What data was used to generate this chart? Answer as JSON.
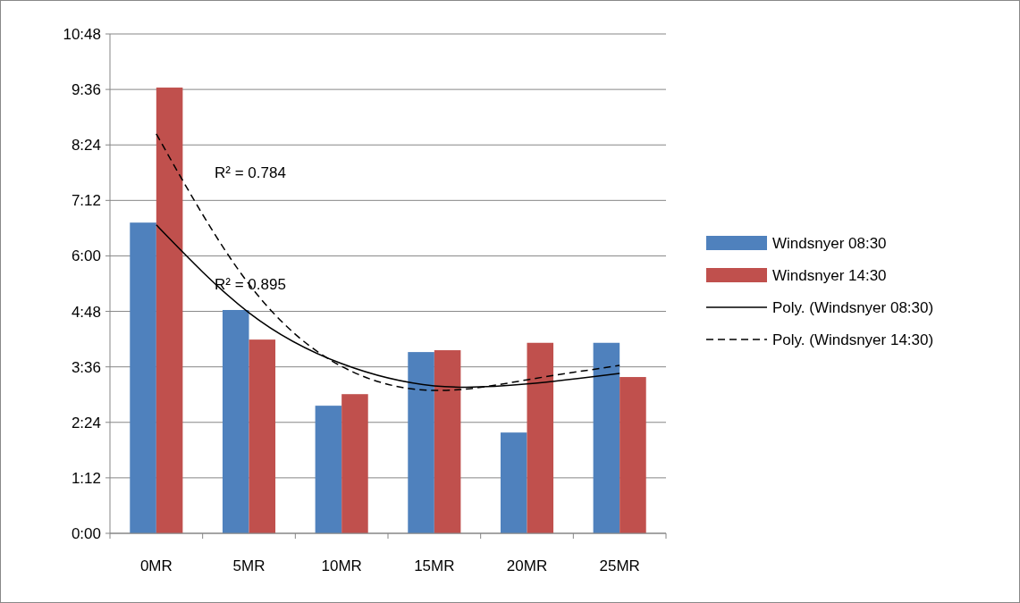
{
  "chart_data": {
    "type": "bar",
    "categories": [
      "0MR",
      "5MR",
      "10MR",
      "15MR",
      "20MR",
      "25MR"
    ],
    "series": [
      {
        "name": "Windsnyer 08:30",
        "color": "#4f81bd",
        "values": [
          6.72,
          4.83,
          2.76,
          3.92,
          2.18,
          4.12
        ]
      },
      {
        "name": "Windsnyer 14:30",
        "color": "#c0504d",
        "values": [
          9.64,
          4.19,
          3.01,
          3.96,
          4.12,
          3.38
        ]
      },
      {
        "name": "Poly. (Windsnyer 08:30)",
        "type": "line",
        "color": "#000000",
        "line_style": "solid",
        "values": [
          6.67,
          4.77,
          3.67,
          3.19,
          3.23,
          3.46
        ]
      },
      {
        "name": "Poly. (Windsnyer 14:30)",
        "type": "line",
        "color": "#000000",
        "line_style": "dashed",
        "values": [
          8.64,
          5.39,
          3.61,
          3.09,
          3.32,
          3.63
        ]
      }
    ],
    "ylim": [
      0,
      10.8
    ],
    "yticks": [
      {
        "value": 0,
        "label": "0:00"
      },
      {
        "value": 1.2,
        "label": "1:12"
      },
      {
        "value": 2.4,
        "label": "2:24"
      },
      {
        "value": 3.6,
        "label": "3:36"
      },
      {
        "value": 4.8,
        "label": "4:48"
      },
      {
        "value": 6,
        "label": "6:00"
      },
      {
        "value": 7.2,
        "label": "7:12"
      },
      {
        "value": 8.4,
        "label": "8:24"
      },
      {
        "value": 9.6,
        "label": "9:36"
      },
      {
        "value": 10.8,
        "label": "10:48"
      }
    ],
    "annotations": [
      "R² = 0.784",
      "R² = 0.895"
    ],
    "grid": "y",
    "legend": "right"
  }
}
